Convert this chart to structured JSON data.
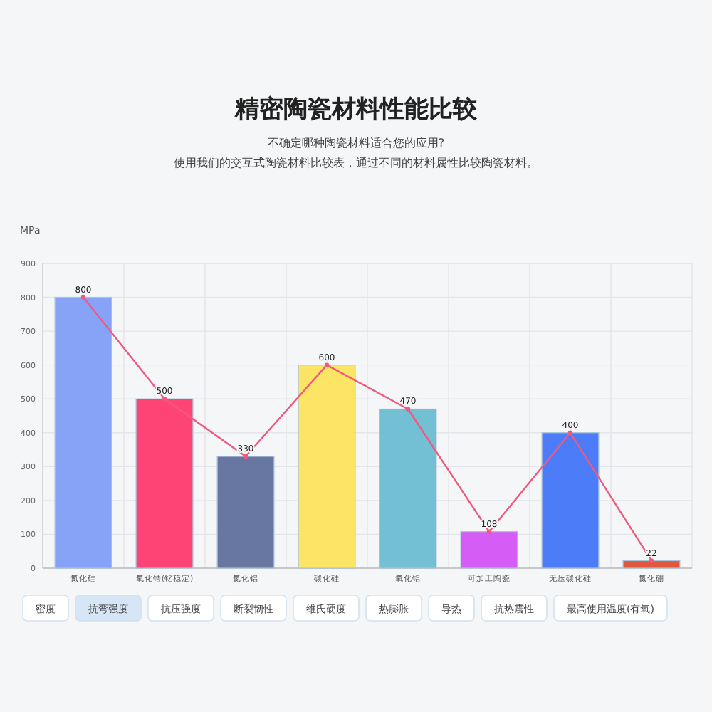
{
  "chart_data": {
    "type": "bar",
    "title": "精密陶瓷材料性能比较",
    "subtitle": "不确定哪种陶瓷材料适合您的应用?",
    "ylabel": "MPa",
    "categories": [
      "氮化硅",
      "氧化锆(钇稳定)",
      "氮化铝",
      "碳化硅",
      "氧化铝",
      "可加工陶瓷",
      "无压碳化硅",
      "氮化硼"
    ],
    "series": [
      {
        "colors": [
          "#87a3f8",
          "#fd4474",
          "#6876a2",
          "#fce565",
          "#73bfd3",
          "#d65cf6",
          "#4c7cf8",
          "#e0573d"
        ],
        "values": [
          800,
          500,
          330,
          600,
          470,
          108,
          400,
          22
        ]
      },
      {
        "type": "line",
        "color": "#f0587e",
        "marker": "circle",
        "values": [
          800,
          500,
          330,
          600,
          470,
          108,
          400,
          22
        ],
        "value_labels": [
          "800",
          "500",
          "330",
          "600",
          "470",
          "108",
          "400",
          "22"
        ]
      }
    ],
    "ylim": [
      0,
      900
    ],
    "yticks": [
      0,
      100,
      200,
      300,
      400,
      500,
      600,
      700,
      800,
      900
    ],
    "grid": true,
    "annotations": [
      "使用我们的交互式陶瓷材料比较表，通过不同的材料属性比较陶瓷材料。",
      "密度",
      "抗弯强度",
      "抗压强度",
      "断裂韧性",
      "维氏硬度",
      "热膨胀",
      "导热",
      "抗热震性",
      "最高使用温度(有氧)"
    ]
  }
}
